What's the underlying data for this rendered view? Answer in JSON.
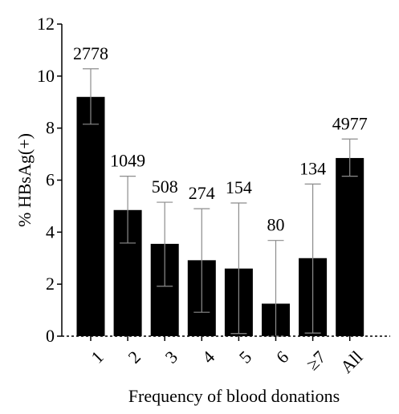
{
  "chart_data": {
    "type": "bar",
    "categories": [
      "1",
      "2",
      "3",
      "4",
      "5",
      "6",
      "≥7",
      "All"
    ],
    "values": [
      9.2,
      4.85,
      3.55,
      2.92,
      2.6,
      1.25,
      3.0,
      6.85
    ],
    "error_lower": [
      8.15,
      3.58,
      1.92,
      0.92,
      0.1,
      0.0,
      0.12,
      6.15
    ],
    "error_upper": [
      10.28,
      6.15,
      5.15,
      4.9,
      5.12,
      3.68,
      5.85,
      7.58
    ],
    "bar_labels": [
      "2778",
      "1049",
      "508",
      "274",
      "154",
      "80",
      "134",
      "4977"
    ],
    "xlabel": "Frequency of blood donations",
    "ylabel": "% HBsAg(+)",
    "ylim": [
      0,
      12
    ],
    "yticks": [
      "0",
      "2",
      "4",
      "6",
      "8",
      "10",
      "12"
    ],
    "bar_color": "#000000",
    "error_bar_color": "#8c8c8c",
    "grid": false,
    "legend": "none"
  }
}
